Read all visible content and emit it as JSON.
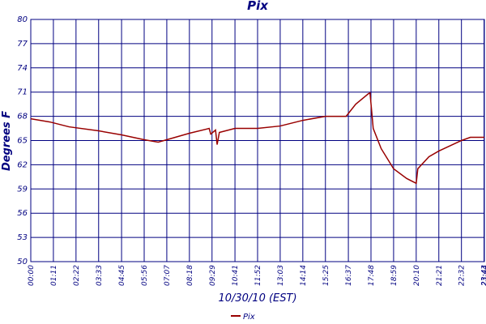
{
  "chart_data": {
    "type": "line",
    "title": "Pix",
    "x_label": "10/30/10 (EST)",
    "y_label": "Degrees F",
    "xlim": [
      0,
      1424
    ],
    "ylim": [
      50,
      80
    ],
    "xticks": [
      {
        "value": 0,
        "label": "00:00"
      },
      {
        "value": 71,
        "label": "01:11"
      },
      {
        "value": 142,
        "label": "02:22"
      },
      {
        "value": 213,
        "label": "03:33"
      },
      {
        "value": 285,
        "label": "04:45"
      },
      {
        "value": 356,
        "label": "05:56"
      },
      {
        "value": 427,
        "label": "07:07"
      },
      {
        "value": 498,
        "label": "08:18"
      },
      {
        "value": 569,
        "label": "09:29"
      },
      {
        "value": 641,
        "label": "10:41"
      },
      {
        "value": 712,
        "label": "11:52"
      },
      {
        "value": 783,
        "label": "13:03"
      },
      {
        "value": 854,
        "label": "14:14"
      },
      {
        "value": 925,
        "label": "15:25"
      },
      {
        "value": 997,
        "label": "16:37"
      },
      {
        "value": 1068,
        "label": "17:48"
      },
      {
        "value": 1139,
        "label": "18:59"
      },
      {
        "value": 1210,
        "label": "20:10"
      },
      {
        "value": 1281,
        "label": "21:21"
      },
      {
        "value": 1352,
        "label": "22:32"
      },
      {
        "value": 1423,
        "label": "23:43"
      },
      {
        "value": 1424,
        "label": "23:44"
      }
    ],
    "yticks": [
      50,
      53,
      56,
      59,
      62,
      65,
      68,
      71,
      74,
      77,
      80
    ],
    "grid": true,
    "x": [
      0,
      60,
      120,
      213,
      285,
      356,
      400,
      427,
      498,
      560,
      565,
      580,
      585,
      592,
      641,
      712,
      783,
      854,
      925,
      990,
      1020,
      1060,
      1065,
      1075,
      1100,
      1139,
      1180,
      1205,
      1210,
      1215,
      1250,
      1281,
      1352,
      1380,
      1424
    ],
    "series": [
      {
        "name": "Pix",
        "color": "#990000",
        "values": [
          67.7,
          67.3,
          66.7,
          66.2,
          65.7,
          65.1,
          64.8,
          65.1,
          65.9,
          66.5,
          65.8,
          66.3,
          64.5,
          66.0,
          66.5,
          66.5,
          66.8,
          67.5,
          68.0,
          68.0,
          69.5,
          70.8,
          70.9,
          66.5,
          64.0,
          61.5,
          60.3,
          59.8,
          59.7,
          61.5,
          63.0,
          63.7,
          65.0,
          65.4,
          65.4
        ]
      }
    ],
    "legend": "bottom"
  }
}
